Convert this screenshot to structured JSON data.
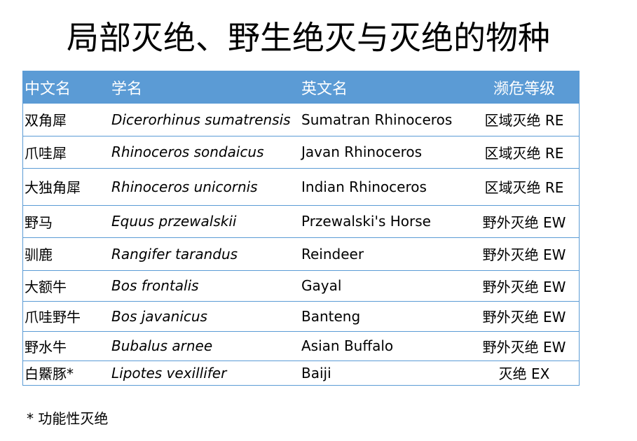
{
  "title": "局部灭绝、野生绝灭与灭绝的物种",
  "table": {
    "headers": [
      "中文名",
      "学名",
      "英文名",
      "濒危等级"
    ],
    "rows": [
      [
        "双角犀",
        "Dicerorhinus sumatrensis",
        "Sumatran Rhinoceros",
        "区域灭绝 RE"
      ],
      [
        "爪哇犀",
        "Rhinoceros sondaicus",
        "Javan Rhinoceros",
        "区域灭绝 RE"
      ],
      [
        "大独角犀",
        "Rhinoceros unicornis",
        "Indian Rhinoceros",
        "区域灭绝 RE"
      ],
      [
        "野马",
        "Equus przewalskii",
        "Przewalski's Horse",
        "野外灭绝 EW"
      ],
      [
        "驯鹿",
        "Rangifer tarandus",
        "Reindeer",
        "野外灭绝 EW"
      ],
      [
        "大额牛",
        "Bos frontalis",
        "Gayal",
        "野外灭绝 EW"
      ],
      [
        "爪哇野牛",
        "Bos javanicus",
        "Banteng",
        "野外灭绝 EW"
      ],
      [
        "野水牛",
        "Bubalus arnee",
        "Asian Buffalo",
        "野外灭绝 EW"
      ],
      [
        "白鱀豚*",
        "Lipotes vexillifer",
        "Baiji",
        "灭绝 EX"
      ]
    ]
  },
  "footnote": "* 功能性灭绝",
  "colors": {
    "header_bg": "#5b9bd5",
    "border": "#5b9bd5"
  }
}
